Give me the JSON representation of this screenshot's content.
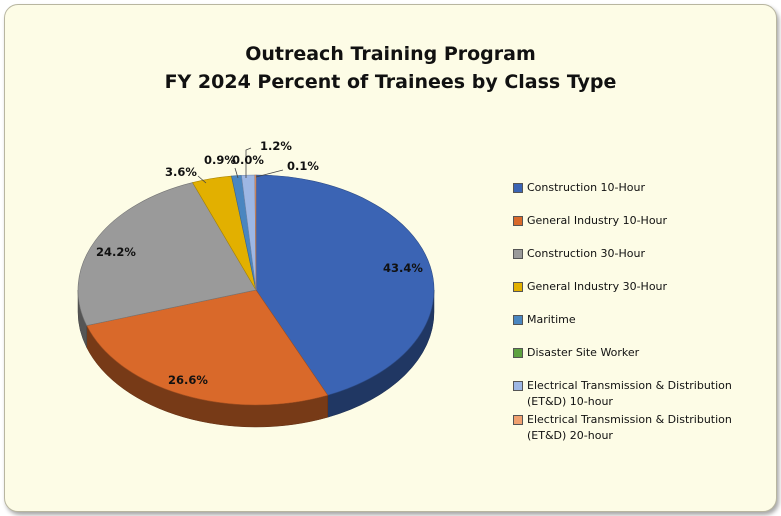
{
  "chart": {
    "title_line1": "Outreach Training Program",
    "title_line2": "FY 2024 Percent of Trainees by Class Type"
  },
  "chart_data": {
    "type": "pie",
    "title": "Outreach Training Program FY 2024 Percent of Trainees by Class Type",
    "unit": "%",
    "legend_position": "right",
    "slices": [
      {
        "name": "Construction 10-Hour",
        "value": 43.4,
        "label": "43.4%",
        "color": "#3b64b4"
      },
      {
        "name": "General Industry 10-Hour",
        "value": 26.6,
        "label": "26.6%",
        "color": "#d9692a"
      },
      {
        "name": "Construction 30-Hour",
        "value": 24.2,
        "label": "24.2%",
        "color": "#9a9a9a"
      },
      {
        "name": "General Industry 30-Hour",
        "value": 3.6,
        "label": "3.6%",
        "color": "#e2b000"
      },
      {
        "name": "Maritime",
        "value": 0.9,
        "label": "0.9%",
        "color": "#4a86c0"
      },
      {
        "name": "Disaster Site Worker",
        "value": 0.0,
        "label": "0.0%",
        "color": "#5da140"
      },
      {
        "name": "Electrical Transmission & Distribution (ET&D) 10-hour",
        "value": 1.2,
        "label": "1.2%",
        "color": "#9db7e4"
      },
      {
        "name": "Electrical Transmission & Distribution (ET&D) 20-hour",
        "value": 0.1,
        "label": "0.1%",
        "color": "#f0a070"
      }
    ]
  }
}
